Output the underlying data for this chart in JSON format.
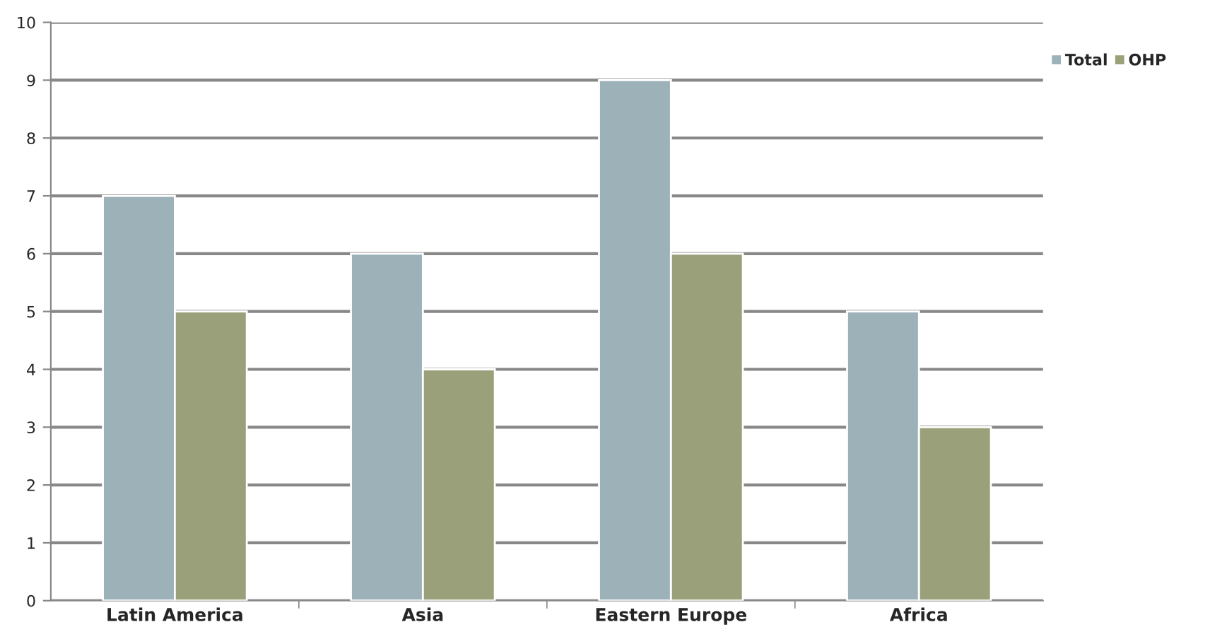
{
  "chart_data": {
    "type": "bar",
    "categories": [
      "Latin America",
      "Asia",
      "Eastern Europe",
      "Africa"
    ],
    "series": [
      {
        "name": "Total",
        "color": "#9db1b9",
        "values": [
          7,
          6,
          9,
          5
        ]
      },
      {
        "name": "OHP",
        "color": "#9aa07a",
        "values": [
          5,
          4,
          6,
          3
        ]
      }
    ],
    "ylim": [
      0,
      10
    ],
    "yticks": [
      0,
      1,
      2,
      3,
      4,
      5,
      6,
      7,
      8,
      9,
      10
    ],
    "grid": "y",
    "legend": "top right"
  }
}
